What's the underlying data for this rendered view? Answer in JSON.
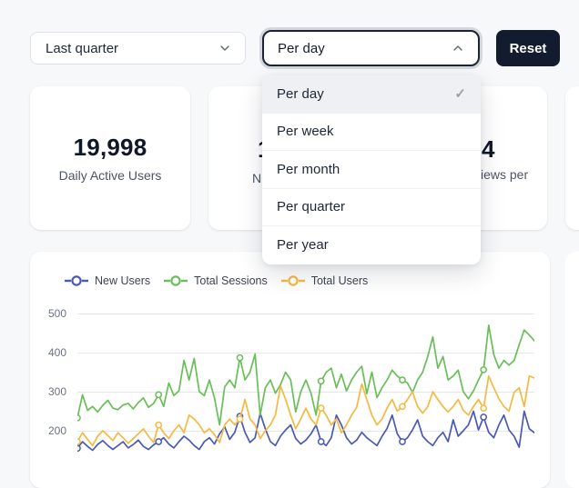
{
  "colors": {
    "page_bg": "#f7f8fa",
    "dark_accent": "#131c2e",
    "blue": "#4a59b5",
    "green": "#68bf58",
    "orange": "#f5b942",
    "gridline": "#e3e8ef"
  },
  "toolbar": {
    "range_select": {
      "value": "Last quarter",
      "icon": "chevron-down-icon"
    },
    "interval_select": {
      "value": "Per day",
      "icon": "chevron-up-icon",
      "open": true
    },
    "reset_label": "Reset"
  },
  "interval_menu": {
    "check_icon": "check-icon",
    "check_glyph": "✓",
    "options": [
      {
        "label": "Per day",
        "selected": true
      },
      {
        "label": "Per week",
        "selected": false
      },
      {
        "label": "Per month",
        "selected": false
      },
      {
        "label": "Per quarter",
        "selected": false
      },
      {
        "label": "Per year",
        "selected": false
      }
    ]
  },
  "stat_cards": [
    {
      "value": "19,998",
      "label": "Daily Active Users",
      "obscured": false
    },
    {
      "value": "1",
      "label": "N",
      "obscured": true,
      "note_visible_fragment_only": true
    },
    {
      "value": "4",
      "label": "iews per",
      "obscured": true,
      "note_visible_fragment_only": true
    },
    {
      "value": "",
      "label": "",
      "obscured": true
    }
  ],
  "chart_data": {
    "type": "line",
    "title": "",
    "xlabel": "",
    "ylabel": "",
    "y_ticks": [
      500,
      400,
      300,
      200
    ],
    "ylim_visible": [
      200,
      500
    ],
    "grid": true,
    "legend_position": "top-left",
    "marker_every": 16,
    "marker_style": "hollow-circle",
    "series": [
      {
        "name": "New Users",
        "color": "#4a59b5",
        "values": [
          155,
          172,
          160,
          150,
          165,
          175,
          162,
          152,
          162,
          172,
          156,
          165,
          176,
          160,
          152,
          164,
          172,
          182,
          166,
          156,
          172,
          186,
          176,
          162,
          152,
          172,
          182,
          166,
          192,
          210,
          178,
          196,
          237,
          196,
          170,
          182,
          245,
          205,
          172,
          162,
          186,
          202,
          215,
          180,
          166,
          176,
          192,
          215,
          172,
          162,
          182,
          240,
          215,
          182,
          166,
          176,
          196,
          182,
          172,
          162,
          186,
          206,
          240,
          192,
          172,
          182,
          202,
          228,
          186,
          172,
          162,
          182,
          196,
          172,
          228,
          186,
          200,
          215,
          250,
          202,
          235,
          196,
          182,
          215,
          240,
          202,
          186,
          158,
          250,
          205,
          195
        ]
      },
      {
        "name": "Total Sessions",
        "color": "#68bf58",
        "values": [
          233,
          292,
          252,
          262,
          248,
          265,
          278,
          258,
          254,
          266,
          270,
          256,
          272,
          284,
          260,
          270,
          292,
          262,
          322,
          290,
          302,
          380,
          330,
          385,
          300,
          290,
          330,
          284,
          215,
          312,
          330,
          310,
          387,
          330,
          350,
          396,
          240,
          310,
          330,
          296,
          318,
          350,
          330,
          248,
          300,
          330,
          296,
          240,
          327,
          350,
          360,
          310,
          345,
          302,
          330,
          350,
          365,
          295,
          350,
          285,
          310,
          330,
          355,
          340,
          330,
          322,
          298,
          330,
          350,
          390,
          440,
          360,
          390,
          330,
          340,
          355,
          300,
          282,
          302,
          330,
          356,
          470,
          395,
          360,
          380,
          368,
          380,
          420,
          458,
          445,
          430
        ]
      },
      {
        "name": "Total Users",
        "color": "#f5b942",
        "values": [
          172,
          195,
          178,
          162,
          186,
          200,
          188,
          175,
          195,
          182,
          168,
          180,
          192,
          205,
          186,
          170,
          215,
          195,
          180,
          200,
          215,
          195,
          240,
          230,
          215,
          195,
          205,
          190,
          170,
          215,
          230,
          215,
          230,
          280,
          230,
          215,
          180,
          200,
          215,
          240,
          315,
          280,
          240,
          205,
          230,
          258,
          230,
          215,
          258,
          240,
          215,
          230,
          195,
          215,
          240,
          260,
          320,
          280,
          240,
          215,
          230,
          258,
          280,
          250,
          262,
          280,
          300,
          262,
          245,
          262,
          300,
          280,
          262,
          248,
          262,
          280,
          252,
          240,
          262,
          280,
          258,
          340,
          310,
          282,
          262,
          250,
          298,
          310,
          262,
          340,
          335
        ]
      }
    ]
  }
}
